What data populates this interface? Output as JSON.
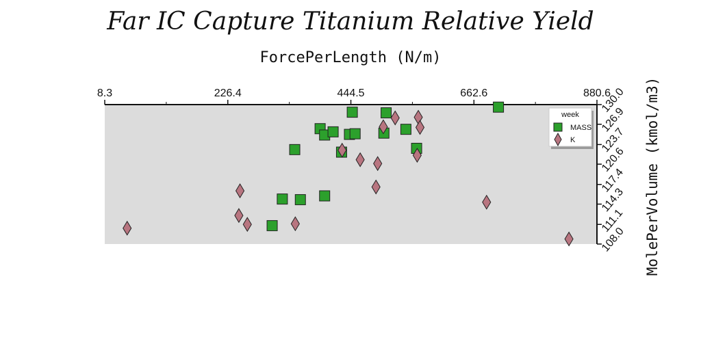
{
  "chart_data": {
    "type": "scatter",
    "title": "Far IC Capture Titanium Relative Yield",
    "xlabel": "ForcePerLength (N/m)",
    "ylabel": "MolePerVolume (kmol/m3)",
    "xlim": [
      8.3,
      880.6
    ],
    "ylim": [
      108.0,
      130.0
    ],
    "x_ticks": [
      "8.3",
      "226.4",
      "444.5",
      "662.6",
      "880.6"
    ],
    "y_ticks": [
      "108.0",
      "111.1",
      "114.3",
      "117.4",
      "120.6",
      "123.7",
      "126.9",
      "130.0"
    ],
    "grid": false,
    "legend": {
      "title": "week",
      "placement": "top-right"
    },
    "colors": {
      "MASS": "#2ca02c",
      "K": "#b87580",
      "plot_bg": "#dcdcdc"
    },
    "series": [
      {
        "name": "MASS",
        "marker": "square",
        "points": [
          [
            305,
            110.9
          ],
          [
            323,
            115.1
          ],
          [
            355,
            115.0
          ],
          [
            398,
            115.6
          ],
          [
            345,
            122.9
          ],
          [
            390,
            126.2
          ],
          [
            398,
            125.2
          ],
          [
            413,
            125.7
          ],
          [
            428,
            122.5
          ],
          [
            442,
            125.3
          ],
          [
            452,
            125.4
          ],
          [
            447,
            128.8
          ],
          [
            503,
            125.5
          ],
          [
            507,
            128.7
          ],
          [
            542,
            126.1
          ],
          [
            561,
            123.1
          ],
          [
            706,
            129.6
          ]
        ]
      },
      {
        "name": "K",
        "marker": "diamond",
        "points": [
          [
            48,
            110.5
          ],
          [
            246,
            112.5
          ],
          [
            248,
            116.4
          ],
          [
            261,
            111.1
          ],
          [
            346,
            111.2
          ],
          [
            429,
            122.8
          ],
          [
            461,
            121.3
          ],
          [
            489,
            117.0
          ],
          [
            492,
            120.7
          ],
          [
            502,
            126.5
          ],
          [
            523,
            127.9
          ],
          [
            564,
            128.0
          ],
          [
            567,
            126.4
          ],
          [
            562,
            122.0
          ],
          [
            685,
            114.6
          ],
          [
            831,
            108.8
          ]
        ]
      }
    ]
  }
}
